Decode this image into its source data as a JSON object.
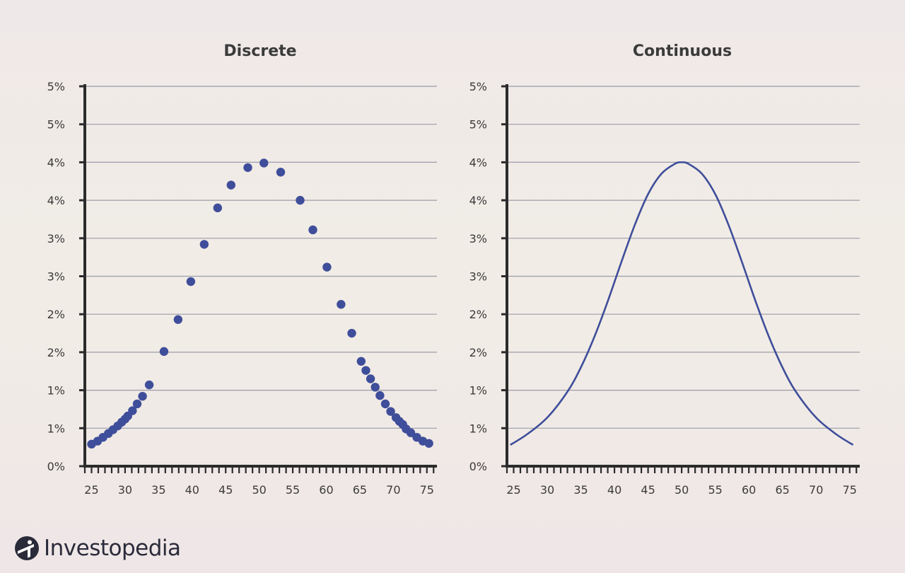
{
  "brand": {
    "name": "Investopedia"
  },
  "colors": {
    "marker": "#3f4e9a",
    "axis": "#2b2b2b",
    "grid": "#9c9ca8",
    "text": "#3b3b3b"
  },
  "chart_data": [
    {
      "type": "scatter",
      "title": "Discrete",
      "xlabel": "",
      "ylabel": "",
      "xlim": [
        24,
        76.5
      ],
      "ylim": [
        0,
        5
      ],
      "x_ticks": [
        25,
        30,
        35,
        40,
        45,
        50,
        55,
        60,
        65,
        70,
        75
      ],
      "y_tick_labels": [
        "0%",
        "1%",
        "1%",
        "2%",
        "2%",
        "3%",
        "3%",
        "4%",
        "4%",
        "5%",
        "5%"
      ],
      "grid": true,
      "x": [
        25,
        25.9,
        26.7,
        27.5,
        28.2,
        28.9,
        29.5,
        30,
        30.4,
        31.1,
        31.8,
        32.6,
        33.6,
        35.8,
        37.9,
        39.8,
        41.8,
        43.8,
        45.8,
        48.3,
        50.7,
        53.2,
        56.1,
        58,
        60.1,
        62.2,
        63.8,
        65.2,
        65.9,
        66.6,
        67.3,
        68,
        68.8,
        69.6,
        70.4,
        70.9,
        71.4,
        71.9,
        72.6,
        73.5,
        74.4,
        75.3
      ],
      "values": [
        0.29,
        0.33,
        0.38,
        0.43,
        0.48,
        0.53,
        0.58,
        0.62,
        0.66,
        0.73,
        0.82,
        0.92,
        1.07,
        1.51,
        1.93,
        2.43,
        2.92,
        3.4,
        3.7,
        3.93,
        3.99,
        3.87,
        3.5,
        3.11,
        2.62,
        2.13,
        1.75,
        1.38,
        1.26,
        1.15,
        1.04,
        0.93,
        0.82,
        0.72,
        0.64,
        0.59,
        0.55,
        0.49,
        0.44,
        0.38,
        0.33,
        0.3
      ]
    },
    {
      "type": "line",
      "title": "Continuous",
      "xlabel": "",
      "ylabel": "",
      "xlim": [
        24,
        76.5
      ],
      "ylim": [
        0,
        5
      ],
      "x_ticks": [
        25,
        30,
        35,
        40,
        45,
        50,
        55,
        60,
        65,
        70,
        75
      ],
      "y_tick_labels": [
        "0%",
        "1%",
        "1%",
        "2%",
        "2%",
        "3%",
        "3%",
        "4%",
        "4%",
        "5%",
        "5%"
      ],
      "grid": true,
      "x": [
        24.5,
        27,
        30,
        33,
        35,
        37,
        39,
        41,
        43,
        45,
        47,
        49,
        50,
        51,
        53,
        55,
        57,
        59,
        61,
        63,
        65,
        67,
        70,
        73,
        75.5
      ],
      "values": [
        0.28,
        0.42,
        0.64,
        0.98,
        1.3,
        1.7,
        2.17,
        2.68,
        3.17,
        3.58,
        3.85,
        3.98,
        4.0,
        3.98,
        3.85,
        3.58,
        3.17,
        2.68,
        2.17,
        1.7,
        1.3,
        0.98,
        0.64,
        0.42,
        0.28
      ]
    }
  ]
}
